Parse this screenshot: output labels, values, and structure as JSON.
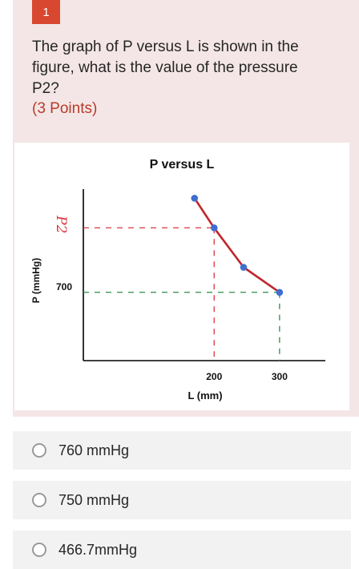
{
  "question": {
    "number": "1",
    "text": "The graph of P versus L is shown in the figure, what is the value of the pressure P2?",
    "points": "(3 Points)"
  },
  "options": [
    {
      "label": "760 mmHg"
    },
    {
      "label": "750 mmHg"
    },
    {
      "label": "466.7mmHg"
    }
  ],
  "colors": {
    "accent": "#d8472f",
    "card_background": "#f4e6e6",
    "curve": "#c0262b",
    "points": "#3d6fd1",
    "p2_guide": "#d9343a",
    "p700_guide": "#2e8b47"
  },
  "chart_data": {
    "type": "line",
    "title": "P versus L",
    "xlabel": "L (mm)",
    "ylabel": "P (mmHg)",
    "x_ticks": [
      "200",
      "300"
    ],
    "y_ticks": [
      "700"
    ],
    "y_marker_label": "P2",
    "series": [
      {
        "x": [
          170,
          200,
          245,
          300
        ],
        "y": [
          948,
          870,
          766,
          700
        ]
      }
    ],
    "guides": [
      {
        "x": 200,
        "y": 870,
        "label": "P2"
      },
      {
        "x": 300,
        "y": 700,
        "label": "700"
      }
    ],
    "xlim": [
      0,
      370
    ],
    "ylim": [
      520,
      1010
    ],
    "grid": false
  }
}
